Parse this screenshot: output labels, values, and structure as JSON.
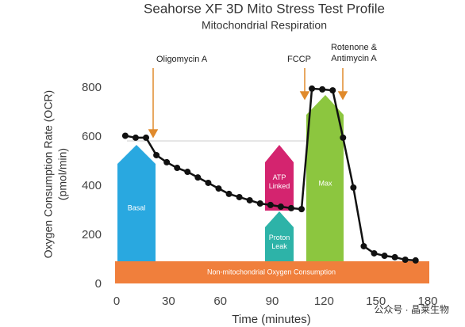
{
  "chart_data": {
    "type": "line",
    "title": "Seahorse XF 3D Mito Stress Test Profile",
    "subtitle": "Mitochondrial Respiration",
    "x_label": "Time (minutes)",
    "y_label": [
      "Oxygen Consumption Rate (OCR)",
      "(pmol/min)"
    ],
    "xlim": [
      0,
      180
    ],
    "xticks": [
      0,
      30,
      60,
      90,
      120,
      150,
      180
    ],
    "ylim": [
      0,
      800
    ],
    "yticks": [
      0,
      200,
      400,
      600,
      800
    ],
    "series": [
      {
        "color": "#111111",
        "x": [
          5,
          11,
          17,
          23,
          29,
          35,
          41,
          47,
          53,
          59,
          65,
          71,
          77,
          83,
          89,
          95,
          101,
          107,
          113,
          119,
          125,
          131,
          137,
          143,
          149,
          155,
          161,
          167,
          173
        ],
        "values": [
          605,
          597,
          597,
          526,
          497,
          474,
          458,
          435,
          413,
          390,
          368,
          355,
          342,
          329,
          323,
          316,
          310,
          306,
          797,
          794,
          790,
          597,
          394,
          155,
          126,
          116,
          110,
          100,
          97
        ]
      }
    ],
    "drugs": [
      [
        "Oligomycin A"
      ],
      [
        "FCCP"
      ],
      [
        "Rotenone &",
        "Antimycin A"
      ]
    ],
    "regions": [
      [
        "Basal"
      ],
      [
        "ATP",
        "Linked"
      ],
      [
        "Proton",
        "Leak"
      ],
      [
        "Max"
      ],
      [
        "Non-mitochondrial Oxygen Consumption"
      ]
    ],
    "watermark": "公众号 · 晶莱生物"
  }
}
